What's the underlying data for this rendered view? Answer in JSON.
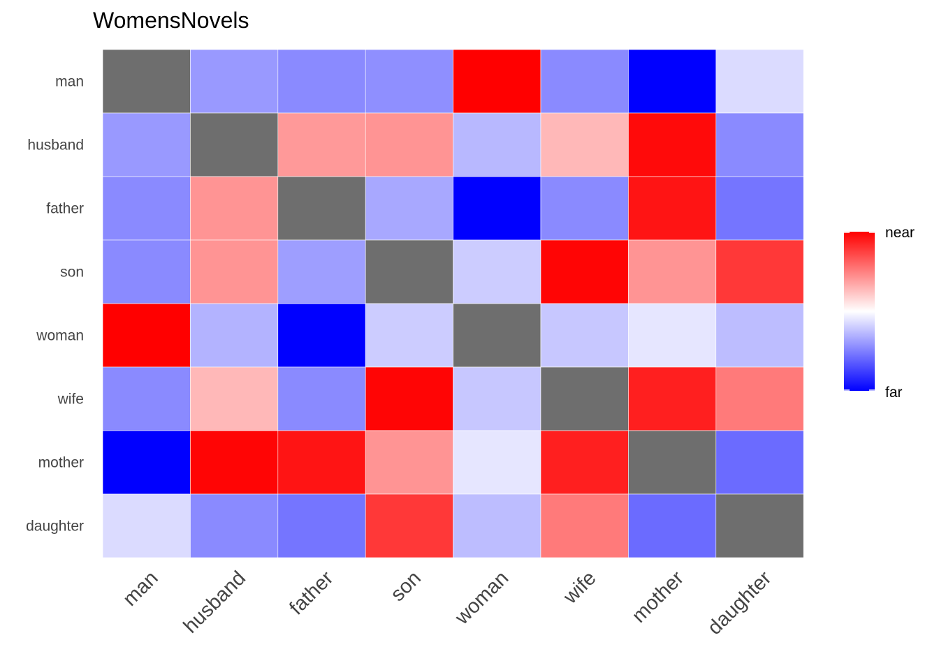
{
  "chart_data": {
    "type": "heatmap",
    "title": "WomensNovels",
    "xlabel": "",
    "ylabel": "",
    "x_categories": [
      "man",
      "husband",
      "father",
      "son",
      "woman",
      "wife",
      "mother",
      "daughter"
    ],
    "y_categories": [
      "man",
      "husband",
      "father",
      "son",
      "woman",
      "wife",
      "mother",
      "daughter"
    ],
    "scale": {
      "min": 0,
      "max": 1,
      "low_label": "far",
      "high_label": "near",
      "low_color": "#0000ff",
      "mid_color": "#ffffff",
      "high_color": "#ff0000",
      "na_color": "#6e6e6e"
    },
    "values": [
      [
        null,
        0.3,
        0.27,
        0.28,
        1.0,
        0.27,
        0.0,
        0.43
      ],
      [
        0.3,
        null,
        0.7,
        0.71,
        0.36,
        0.64,
        0.98,
        0.27
      ],
      [
        0.27,
        0.71,
        null,
        0.33,
        0.0,
        0.27,
        0.96,
        0.23
      ],
      [
        0.27,
        0.71,
        0.31,
        null,
        0.4,
        0.99,
        0.71,
        0.89
      ],
      [
        1.0,
        0.35,
        0.0,
        0.4,
        null,
        0.39,
        0.45,
        0.37
      ],
      [
        0.27,
        0.64,
        0.27,
        0.99,
        0.39,
        null,
        0.94,
        0.76
      ],
      [
        0.0,
        0.99,
        0.96,
        0.71,
        0.45,
        0.94,
        null,
        0.21
      ],
      [
        0.43,
        0.27,
        0.23,
        0.89,
        0.37,
        0.76,
        0.21,
        null
      ]
    ]
  }
}
